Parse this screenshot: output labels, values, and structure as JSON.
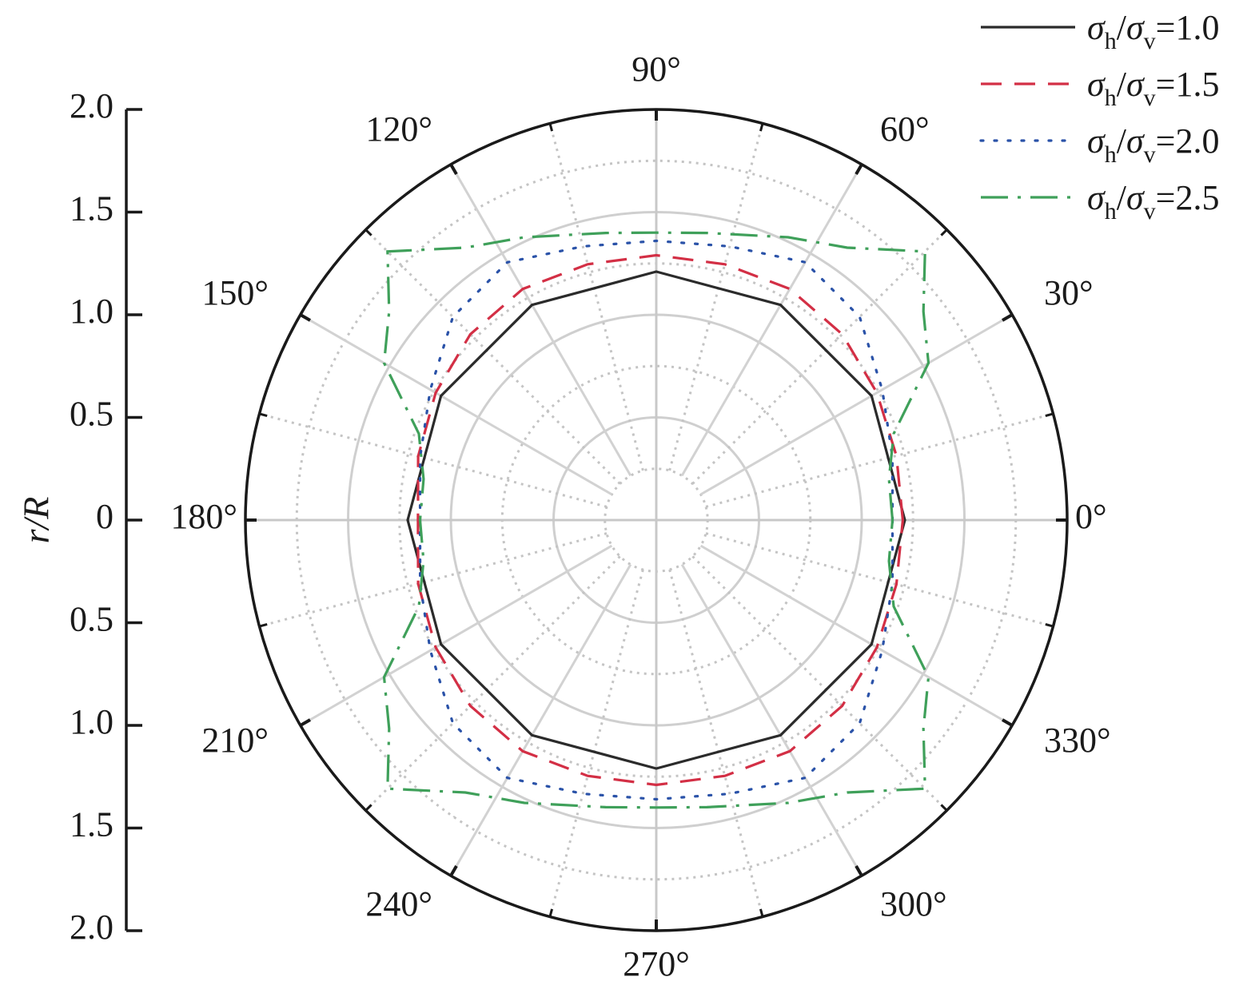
{
  "chart_data": {
    "type": "polar-line",
    "ylabel": "r/R",
    "radial_ticks": [
      "2.0",
      "1.5",
      "1.0",
      "0.5",
      "0",
      "0.5",
      "1.0",
      "1.5",
      "2.0"
    ],
    "radial_range": [
      0,
      2.0
    ],
    "angle_ticks": [
      {
        "deg": 0,
        "label": "0°"
      },
      {
        "deg": 30,
        "label": "30°"
      },
      {
        "deg": 60,
        "label": "60°"
      },
      {
        "deg": 90,
        "label": "90°"
      },
      {
        "deg": 120,
        "label": "120°"
      },
      {
        "deg": 150,
        "label": "150°"
      },
      {
        "deg": 180,
        "label": "180°"
      },
      {
        "deg": 210,
        "label": "210°"
      },
      {
        "deg": 240,
        "label": "240°"
      },
      {
        "deg": 270,
        "label": "270°"
      },
      {
        "deg": 300,
        "label": "300°"
      },
      {
        "deg": 330,
        "label": "330°"
      }
    ],
    "grid": true,
    "legend_position": "top-right",
    "series": [
      {
        "name_parts": [
          "σ",
          "h",
          "/σ",
          "v",
          "=1.0"
        ],
        "color": "#2b2b2b",
        "dash": "",
        "r": [
          [
            0,
            1.21
          ],
          [
            30,
            1.21
          ],
          [
            60,
            1.21
          ],
          [
            90,
            1.21
          ],
          [
            120,
            1.21
          ],
          [
            150,
            1.21
          ],
          [
            180,
            1.21
          ],
          [
            210,
            1.21
          ],
          [
            240,
            1.21
          ],
          [
            270,
            1.21
          ],
          [
            300,
            1.21
          ],
          [
            330,
            1.21
          ],
          [
            360,
            1.21
          ]
        ]
      },
      {
        "name_parts": [
          "σ",
          "h",
          "/σ",
          "v",
          "=1.5"
        ],
        "color": "#d32f45",
        "dash": "26,16",
        "r": [
          [
            0,
            1.2
          ],
          [
            15,
            1.21
          ],
          [
            30,
            1.24
          ],
          [
            45,
            1.28
          ],
          [
            60,
            1.3
          ],
          [
            75,
            1.29
          ],
          [
            90,
            1.29
          ],
          [
            105,
            1.29
          ],
          [
            120,
            1.3
          ],
          [
            135,
            1.28
          ],
          [
            150,
            1.24
          ],
          [
            165,
            1.2
          ],
          [
            180,
            1.16
          ],
          [
            195,
            1.2
          ],
          [
            210,
            1.24
          ],
          [
            225,
            1.28
          ],
          [
            240,
            1.3
          ],
          [
            255,
            1.29
          ],
          [
            270,
            1.29
          ],
          [
            285,
            1.29
          ],
          [
            300,
            1.3
          ],
          [
            315,
            1.28
          ],
          [
            330,
            1.24
          ],
          [
            345,
            1.21
          ],
          [
            360,
            1.2
          ]
        ]
      },
      {
        "name_parts": [
          "σ",
          "h",
          "/σ",
          "v",
          "=2.0"
        ],
        "color": "#2a52a8",
        "dash": "3,14",
        "r": [
          [
            0,
            1.15
          ],
          [
            15,
            1.19
          ],
          [
            30,
            1.27
          ],
          [
            45,
            1.4
          ],
          [
            60,
            1.45
          ],
          [
            75,
            1.38
          ],
          [
            90,
            1.36
          ],
          [
            105,
            1.38
          ],
          [
            120,
            1.45
          ],
          [
            135,
            1.4
          ],
          [
            150,
            1.27
          ],
          [
            165,
            1.19
          ],
          [
            180,
            1.15
          ],
          [
            195,
            1.19
          ],
          [
            210,
            1.27
          ],
          [
            225,
            1.4
          ],
          [
            240,
            1.45
          ],
          [
            255,
            1.38
          ],
          [
            270,
            1.36
          ],
          [
            285,
            1.38
          ],
          [
            300,
            1.45
          ],
          [
            315,
            1.4
          ],
          [
            330,
            1.27
          ],
          [
            345,
            1.19
          ],
          [
            360,
            1.15
          ]
        ]
      },
      {
        "name_parts": [
          "σ",
          "h",
          "/σ",
          "v",
          "=2.5"
        ],
        "color": "#3fa05a",
        "dash": "34,12,4,12",
        "r": [
          [
            0,
            1.15
          ],
          [
            10,
            1.15
          ],
          [
            20,
            1.23
          ],
          [
            30,
            1.53
          ],
          [
            38,
            1.65
          ],
          [
            45,
            1.85
          ],
          [
            55,
            1.62
          ],
          [
            65,
            1.52
          ],
          [
            80,
            1.42
          ],
          [
            90,
            1.4
          ],
          [
            100,
            1.42
          ],
          [
            115,
            1.52
          ],
          [
            125,
            1.62
          ],
          [
            135,
            1.85
          ],
          [
            142,
            1.65
          ],
          [
            150,
            1.53
          ],
          [
            160,
            1.23
          ],
          [
            170,
            1.15
          ],
          [
            180,
            1.15
          ],
          [
            190,
            1.15
          ],
          [
            200,
            1.23
          ],
          [
            210,
            1.53
          ],
          [
            218,
            1.65
          ],
          [
            225,
            1.85
          ],
          [
            235,
            1.62
          ],
          [
            245,
            1.52
          ],
          [
            260,
            1.42
          ],
          [
            270,
            1.4
          ],
          [
            280,
            1.42
          ],
          [
            295,
            1.52
          ],
          [
            305,
            1.62
          ],
          [
            315,
            1.85
          ],
          [
            322,
            1.65
          ],
          [
            330,
            1.53
          ],
          [
            340,
            1.23
          ],
          [
            350,
            1.15
          ],
          [
            360,
            1.15
          ]
        ]
      }
    ]
  }
}
